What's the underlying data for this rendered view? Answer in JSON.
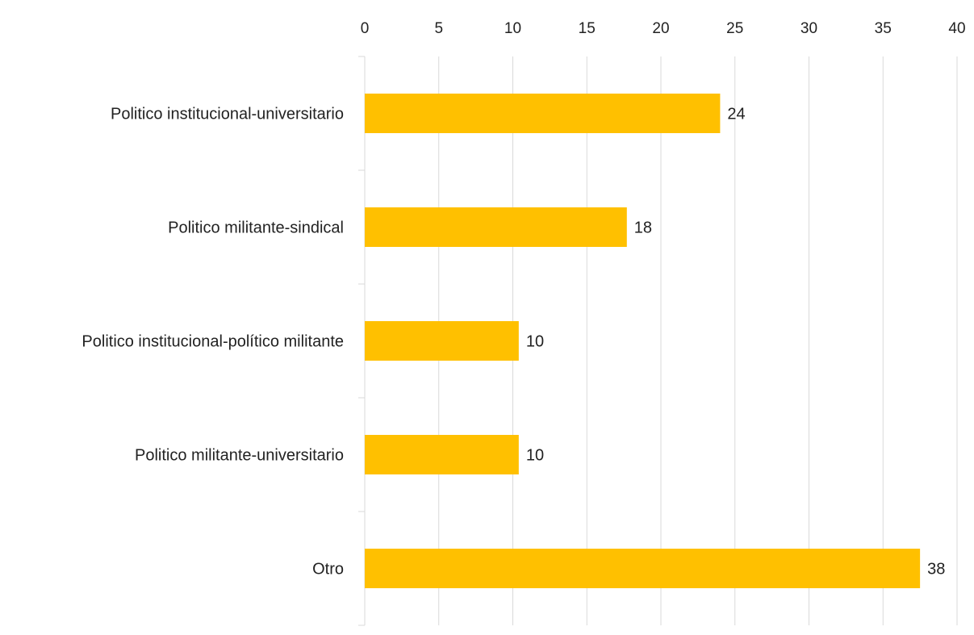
{
  "chart_data": {
    "type": "bar",
    "orientation": "horizontal",
    "categories": [
      "Politico institucional-universitario",
      "Politico militante-sindical",
      "Politico institucional-político militante",
      "Politico militante-universitario",
      "Otro"
    ],
    "values": [
      24,
      18,
      10,
      10,
      38
    ],
    "data_labels": [
      "24",
      "18",
      "10",
      "10",
      "38"
    ],
    "bar_values": [
      24,
      17.7,
      10.4,
      10.4,
      37.5
    ],
    "xlim": [
      0,
      40
    ],
    "x_ticks": [
      0,
      5,
      10,
      15,
      20,
      25,
      30,
      35,
      40
    ],
    "x_tick_labels": [
      "0",
      "5",
      "10",
      "15",
      "20",
      "25",
      "30",
      "35",
      "40"
    ],
    "x_axis_position": "top",
    "grid": true,
    "legend": "none",
    "bar_color": "#FFC000",
    "gridline_color": "#D9D9D9",
    "title": "",
    "xlabel": "",
    "ylabel": ""
  }
}
